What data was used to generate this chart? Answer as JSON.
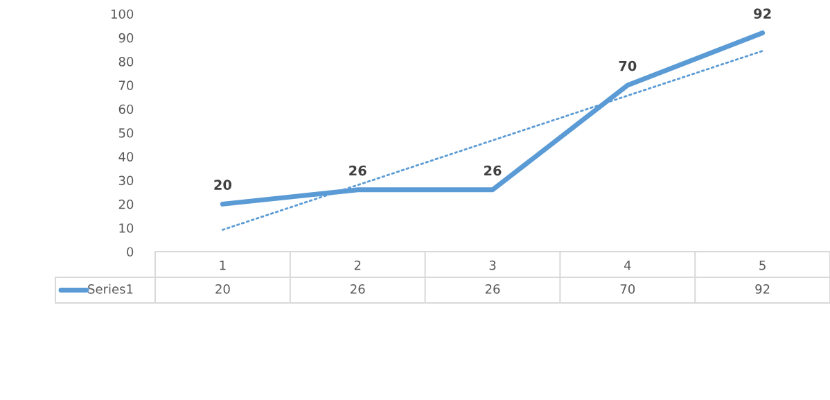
{
  "chart_data": {
    "type": "line",
    "categories": [
      "1",
      "2",
      "3",
      "4",
      "5"
    ],
    "series": [
      {
        "name": "Series1",
        "color": "#5b9bd5",
        "values": [
          20,
          26,
          26,
          70,
          92
        ]
      },
      {
        "type": "line",
        "color": "#5b9bd5",
        "line_style": "dotted",
        "values": [
          9.2,
          28,
          46.8,
          65.6,
          84.4
        ],
        "value_labels": [
          null,
          null,
          null,
          null,
          null
        ]
      }
    ],
    "ylim": [
      0,
      100
    ],
    "yticks": [
      0,
      10,
      20,
      30,
      40,
      50,
      60,
      70,
      80,
      90,
      100
    ],
    "grid": false,
    "legend": "bottom",
    "data_labels": true,
    "annotations": [
      "20",
      "26",
      "26",
      "70",
      "92"
    ]
  }
}
